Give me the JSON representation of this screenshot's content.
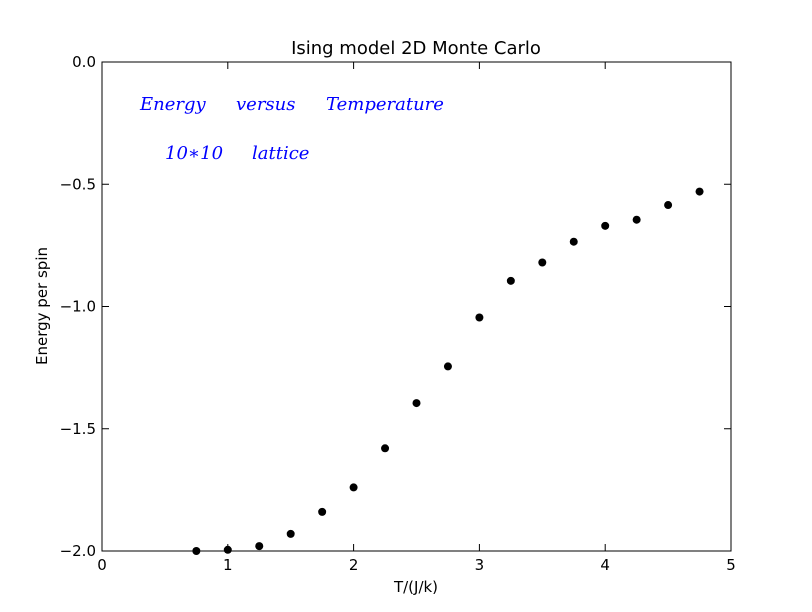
{
  "chart_data": {
    "type": "scatter",
    "title": "Ising model 2D Monte Carlo",
    "xlabel": "T/(J/k)",
    "ylabel": "Energy per spin",
    "xlim": [
      0,
      5
    ],
    "ylim": [
      -2.0,
      0.0
    ],
    "xticks": [
      "0",
      "1",
      "2",
      "3",
      "4",
      "5"
    ],
    "yticks": [
      "0.0",
      "−0.5",
      "−1.0",
      "−1.5",
      "−2.0"
    ],
    "xtick_values": [
      0,
      1,
      2,
      3,
      4,
      5
    ],
    "ytick_values": [
      0.0,
      -0.5,
      -1.0,
      -1.5,
      -2.0
    ],
    "grid": false,
    "marker_color": "#000000",
    "annotations": [
      {
        "parts": [
          "Energy",
          "versus",
          "Temperature"
        ],
        "color": "#0000ff"
      },
      {
        "parts": [
          "10∗10",
          "lattice"
        ],
        "color": "#0000ff"
      }
    ],
    "x": [
      0.75,
      1.0,
      1.25,
      1.5,
      1.75,
      2.0,
      2.25,
      2.5,
      2.75,
      3.0,
      3.25,
      3.5,
      3.75,
      4.0,
      4.25,
      4.5,
      4.75
    ],
    "y": [
      -2.0,
      -1.995,
      -1.98,
      -1.93,
      -1.84,
      -1.74,
      -1.58,
      -1.395,
      -1.245,
      -1.045,
      -0.895,
      -0.82,
      -0.735,
      -0.67,
      -0.645,
      -0.585,
      -0.53
    ]
  }
}
